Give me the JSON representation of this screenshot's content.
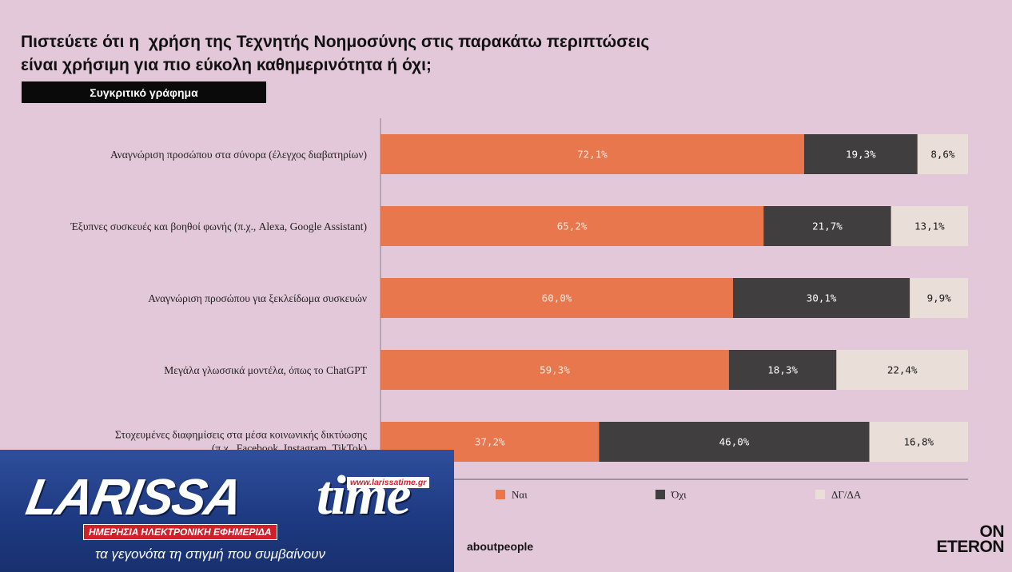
{
  "title_lines": [
    "Πιστεύετε ότι η  χρήση της Τεχνητής Νοημοσύνης στις παρακάτω περιπτώσεις",
    "είναι χρήσιμη για πιο εύκολη καθημερινότητα ή όχι;"
  ],
  "subtitle": "Συγκριτικό γράφημα",
  "chart_data": {
    "type": "bar",
    "orientation": "horizontal",
    "stacked": true,
    "percent_stacked": true,
    "categories": [
      [
        "Αναγνώριση προσώπου στα σύνορα (έλεγχος διαβατηρίων)"
      ],
      [
        "Έξυπνες συσκευές και βοηθοί φωνής (π.χ., Alexa, Google Assistant)"
      ],
      [
        "Αναγνώριση προσώπου για ξεκλείδωμα συσκευών"
      ],
      [
        "Μεγάλα γλωσσικά μοντέλα, όπως το ChatGPT"
      ],
      [
        "Στοχευμένες διαφημίσεις στα μέσα κοινωνικής δικτύωσης",
        "(π.χ., Facebook, Instagram, TikTok)"
      ]
    ],
    "series": [
      {
        "name": "Ναι",
        "color": "#e8774d",
        "label_color": "#fbe8df",
        "values": [
          72.1,
          65.2,
          60.0,
          59.3,
          37.2
        ],
        "labels": [
          "72,1%",
          "65,2%",
          "60,0%",
          "59,3%",
          "37,2%"
        ]
      },
      {
        "name": "Όχι",
        "color": "#403e3f",
        "label_color": "#ffffff",
        "values": [
          19.3,
          21.7,
          30.1,
          18.3,
          46.0
        ],
        "labels": [
          "19,3%",
          "21,7%",
          "30,1%",
          "18,3%",
          "46,0%"
        ]
      },
      {
        "name": "ΔΓ/ΔΑ",
        "color": "#e9ded8",
        "label_color": "#1a1a1a",
        "values": [
          8.6,
          13.1,
          9.9,
          22.4,
          16.8
        ],
        "labels": [
          "8,6%",
          "13,1%",
          "9,9%",
          "22,4%",
          "16,8%"
        ]
      }
    ],
    "legend_position": "bottom",
    "grid": false
  },
  "footer": {
    "brand": "aboutpeople",
    "logo_lines": [
      "ON",
      "ETERON"
    ]
  },
  "overlay_logo": {
    "name": "LARISSA",
    "name_suffix": "time",
    "url": "www.larissatime.gr",
    "tagline": "ΗΜΕΡΗΣΙΑ ΗΛΕΚΤΡΟΝΙΚΗ ΕΦΗΜΕΡΙΔΑ",
    "slogan": "τα γεγονότα τη στιγμή που συμβαίνουν"
  }
}
